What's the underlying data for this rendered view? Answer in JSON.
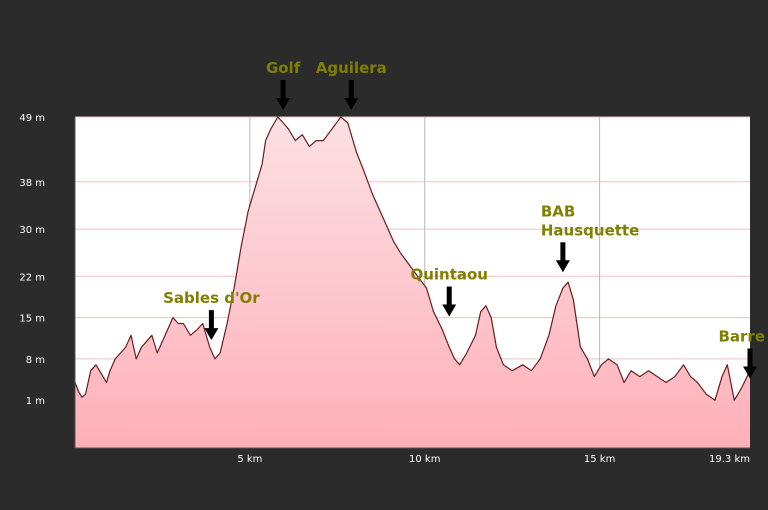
{
  "chart_data": {
    "type": "area",
    "x_unit": "km",
    "y_unit": "m",
    "xlim": [
      0,
      19.3
    ],
    "ylim": [
      -7.1,
      49
    ],
    "y_ticks": [
      "49 m",
      "38 m",
      "30 m",
      "22 m",
      "15 m",
      "8 m",
      "1 m"
    ],
    "y_tick_values": [
      49,
      38,
      30,
      22,
      15,
      8,
      1
    ],
    "x_ticks": [
      "5 km",
      "10 km",
      "15 km",
      "19.3 km"
    ],
    "x_tick_values": [
      5,
      10,
      15,
      19.3
    ],
    "grid": true,
    "colors": {
      "background": "#2b2b2b",
      "plot": "#ffffff",
      "fill_top": "#f7c8cf",
      "fill_bottom": "#ffb0b8",
      "line": "#6b1d1d",
      "annotation": "#808000",
      "arrow": "#000000"
    },
    "x": [
      0,
      0.1,
      0.2,
      0.3,
      0.45,
      0.6,
      0.8,
      0.9,
      1.0,
      1.15,
      1.3,
      1.45,
      1.6,
      1.75,
      1.9,
      2.05,
      2.2,
      2.35,
      2.5,
      2.65,
      2.8,
      2.95,
      3.1,
      3.3,
      3.5,
      3.65,
      3.85,
      4.0,
      4.15,
      4.35,
      4.55,
      4.75,
      4.85,
      4.95,
      5.05,
      5.15,
      5.25,
      5.35,
      5.45,
      5.6,
      5.8,
      5.95,
      6.1,
      6.3,
      6.5,
      6.7,
      6.9,
      7.1,
      7.35,
      7.6,
      7.8,
      7.95,
      8.05,
      8.25,
      8.5,
      8.8,
      9.1,
      9.3,
      9.55,
      9.8,
      10.05,
      10.25,
      10.5,
      10.7,
      10.85,
      11.0,
      11.2,
      11.45,
      11.6,
      11.75,
      11.9,
      12.05,
      12.25,
      12.5,
      12.8,
      13.05,
      13.3,
      13.55,
      13.75,
      13.95,
      14.1,
      14.25,
      14.45,
      14.65,
      14.85,
      15.05,
      15.25,
      15.5,
      15.7,
      15.9,
      16.15,
      16.4,
      16.65,
      16.9,
      17.15,
      17.4,
      17.6,
      17.8,
      18.05,
      18.3,
      18.5,
      18.65,
      18.85,
      19.05,
      19.3
    ],
    "y": [
      4,
      2.5,
      1.5,
      2,
      6,
      7,
      5,
      4,
      6,
      8,
      9,
      10,
      12,
      8,
      10,
      11,
      12,
      9,
      11,
      13,
      15,
      14,
      14,
      12,
      13,
      14,
      10,
      8,
      9,
      14,
      20,
      27,
      30,
      33,
      35,
      37,
      39,
      41,
      45,
      47,
      49,
      48,
      47,
      45,
      46,
      44,
      45,
      45,
      47,
      49,
      48,
      45,
      43,
      40,
      36,
      32,
      28,
      26,
      24,
      22,
      20,
      16,
      13,
      10,
      8,
      7,
      9,
      12,
      16,
      17,
      15,
      10,
      7,
      6,
      7,
      6,
      8,
      12,
      17,
      20,
      21,
      18,
      10,
      8,
      5,
      7,
      8,
      7,
      4,
      6,
      5,
      6,
      5,
      4,
      5,
      7,
      5,
      4,
      2,
      1,
      5,
      7,
      1,
      3,
      6
    ],
    "annotations": [
      {
        "label": "Sables d'Or",
        "x": 3.9,
        "y": 10.5
      },
      {
        "label": "Golf",
        "x": 5.95,
        "y": 49.5
      },
      {
        "label": "Aguilera",
        "x": 7.9,
        "y": 49.5
      },
      {
        "label": "Quintaou",
        "x": 10.7,
        "y": 14.5
      },
      {
        "label": "BAB",
        "x": 13.95,
        "y": 22,
        "line2": "Hausquette"
      },
      {
        "label": "Barre",
        "x": 19.3,
        "y": 4
      }
    ]
  }
}
